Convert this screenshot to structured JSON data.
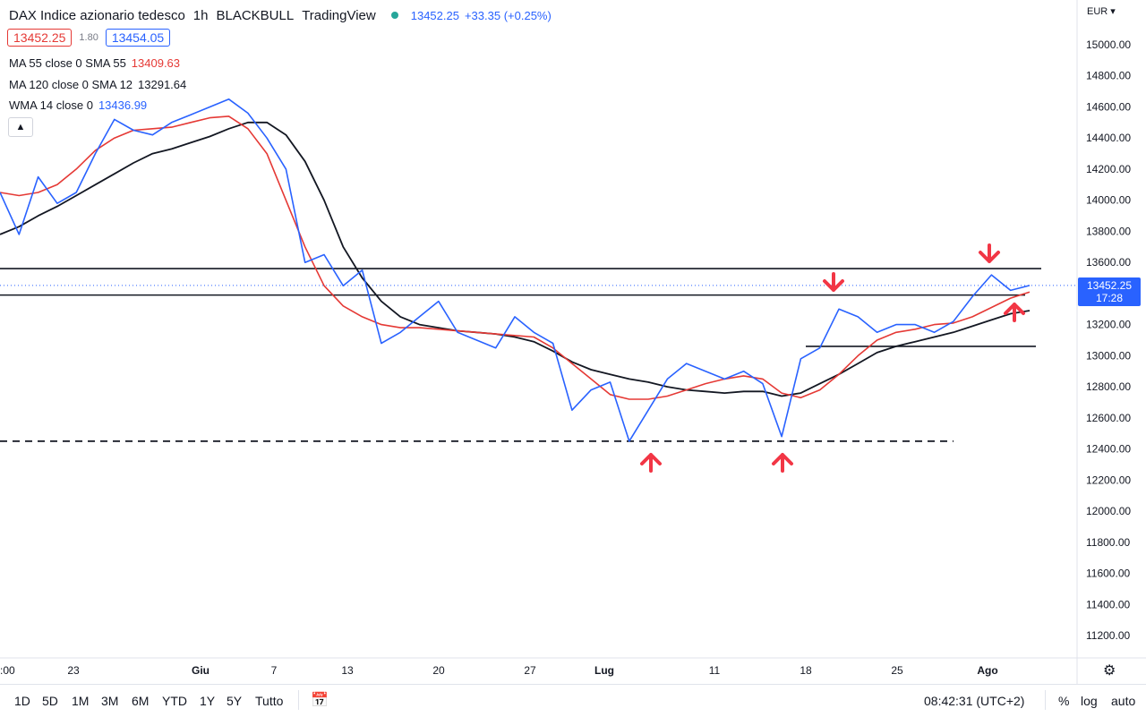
{
  "header": {
    "symbol": "DAX Indice azionario tedesco",
    "interval": "1h",
    "broker": "BLACKBULL",
    "platform": "TradingView",
    "last": "13452.25",
    "change": "+33.35 (+0.25%)",
    "bid": "13452.25",
    "spread": "1.80",
    "ask": "13454.05",
    "status_color": "#26a69a"
  },
  "indicators": [
    {
      "label": "MA 55 close 0 SMA 55",
      "value": "13409.63",
      "color": "#e53935"
    },
    {
      "label": "MA 120 close 0 SMA 12",
      "value": "13291.64",
      "color": "#131722"
    },
    {
      "label": "WMA 14 close 0",
      "value": "13436.99",
      "color": "#2962ff"
    }
  ],
  "axis": {
    "currency": "EUR",
    "price_ticks": [
      "15000.00",
      "14800.00",
      "14600.00",
      "14400.00",
      "14200.00",
      "14000.00",
      "13800.00",
      "13600.00",
      "13400.00",
      "13200.00",
      "13000.00",
      "12800.00",
      "12600.00",
      "12400.00",
      "12200.00",
      "12000.00",
      "11800.00",
      "11600.00",
      "11400.00",
      "11200.00"
    ],
    "time_ticks": [
      ":00",
      "23",
      "Giu",
      "7",
      "13",
      "20",
      "27",
      "Lug",
      "11",
      "18",
      "25",
      "Ago"
    ],
    "last_price_label": "13452.25",
    "countdown": "17:28"
  },
  "footer": {
    "timeframes": [
      "1D",
      "5D",
      "1M",
      "3M",
      "6M",
      "YTD",
      "1Y",
      "5Y",
      "Tutto"
    ],
    "clock": "08:42:31 (UTC+2)",
    "percent": "%",
    "log": "log",
    "auto": "auto"
  },
  "chart_data": {
    "type": "line",
    "title": "DAX Indice azionario tedesco",
    "ylim": [
      11100,
      15100
    ],
    "x": [
      "2022-05-19",
      "2022-05-20",
      "2022-05-23",
      "2022-05-24",
      "2022-05-25",
      "2022-05-26",
      "2022-05-27",
      "2022-05-30",
      "2022-05-31",
      "2022-06-01",
      "2022-06-02",
      "2022-06-03",
      "2022-06-06",
      "2022-06-07",
      "2022-06-08",
      "2022-06-09",
      "2022-06-10",
      "2022-06-13",
      "2022-06-14",
      "2022-06-15",
      "2022-06-16",
      "2022-06-17",
      "2022-06-20",
      "2022-06-21",
      "2022-06-22",
      "2022-06-23",
      "2022-06-24",
      "2022-06-27",
      "2022-06-28",
      "2022-06-29",
      "2022-06-30",
      "2022-07-01",
      "2022-07-04",
      "2022-07-05",
      "2022-07-06",
      "2022-07-07",
      "2022-07-08",
      "2022-07-11",
      "2022-07-12",
      "2022-07-13",
      "2022-07-14",
      "2022-07-15",
      "2022-07-18",
      "2022-07-19",
      "2022-07-20",
      "2022-07-21",
      "2022-07-22",
      "2022-07-25",
      "2022-07-26",
      "2022-07-27",
      "2022-07-28",
      "2022-07-29",
      "2022-08-01",
      "2022-08-02",
      "2022-08-03"
    ],
    "series": [
      {
        "name": "DAX Indice azionario tedesco",
        "color": "#2962ff",
        "values": [
          14050,
          13780,
          14150,
          13980,
          14050,
          14300,
          14520,
          14450,
          14420,
          14500,
          14550,
          14600,
          14650,
          14560,
          14400,
          14200,
          13600,
          13650,
          13450,
          13550,
          13080,
          13150,
          13250,
          13350,
          13150,
          13100,
          13050,
          13250,
          13150,
          13080,
          12650,
          12780,
          12830,
          12450,
          12650,
          12850,
          12950,
          12900,
          12850,
          12900,
          12820,
          12480,
          12980,
          13050,
          13300,
          13250,
          13150,
          13200,
          13200,
          13150,
          13220,
          13380,
          13520,
          13420,
          13452
        ]
      },
      {
        "name": "MA 55 close 0 SMA 55",
        "color": "#e53935",
        "values": [
          14050,
          14030,
          14050,
          14100,
          14200,
          14320,
          14400,
          14450,
          14460,
          14470,
          14500,
          14530,
          14540,
          14460,
          14300,
          14000,
          13700,
          13450,
          13320,
          13250,
          13200,
          13180,
          13180,
          13170,
          13160,
          13150,
          13140,
          13130,
          13120,
          13050,
          12950,
          12850,
          12750,
          12720,
          12720,
          12740,
          12780,
          12820,
          12850,
          12870,
          12850,
          12760,
          12730,
          12780,
          12880,
          13000,
          13100,
          13150,
          13170,
          13200,
          13210,
          13250,
          13310,
          13370,
          13410
        ]
      },
      {
        "name": "MA 120 close 0 SMA 12",
        "color": "#131722",
        "values": [
          13780,
          13830,
          13900,
          13960,
          14030,
          14100,
          14170,
          14240,
          14300,
          14330,
          14370,
          14410,
          14460,
          14500,
          14500,
          14420,
          14250,
          14000,
          13700,
          13500,
          13350,
          13250,
          13200,
          13180,
          13160,
          13150,
          13140,
          13120,
          13090,
          13030,
          12960,
          12910,
          12880,
          12850,
          12830,
          12800,
          12780,
          12770,
          12760,
          12770,
          12770,
          12740,
          12760,
          12820,
          12880,
          12950,
          13020,
          13060,
          13090,
          13120,
          13150,
          13190,
          13230,
          13270,
          13290
        ]
      }
    ],
    "annotations": {
      "horizontal_levels": [
        13560,
        13390,
        13060
      ],
      "dashed_support": 12450,
      "arrows_up_at": [
        "2022-07-05",
        "2022-07-15",
        "2022-08-02"
      ],
      "arrows_down_at": [
        "2022-07-20",
        "2022-08-01"
      ]
    }
  }
}
